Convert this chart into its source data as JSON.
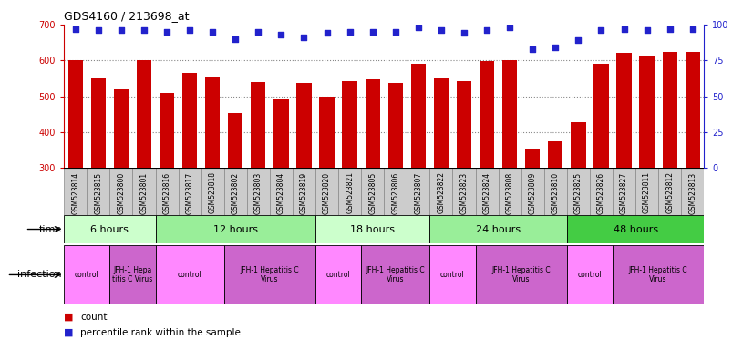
{
  "title": "GDS4160 / 213698_at",
  "samples": [
    "GSM523814",
    "GSM523815",
    "GSM523800",
    "GSM523801",
    "GSM523816",
    "GSM523817",
    "GSM523818",
    "GSM523802",
    "GSM523803",
    "GSM523804",
    "GSM523819",
    "GSM523820",
    "GSM523821",
    "GSM523805",
    "GSM523806",
    "GSM523807",
    "GSM523822",
    "GSM523823",
    "GSM523824",
    "GSM523808",
    "GSM523809",
    "GSM523810",
    "GSM523825",
    "GSM523826",
    "GSM523827",
    "GSM523811",
    "GSM523812",
    "GSM523813"
  ],
  "counts": [
    600,
    549,
    519,
    601,
    510,
    565,
    554,
    454,
    540,
    492,
    538,
    500,
    543,
    548,
    538,
    590,
    549,
    543,
    598,
    601,
    351,
    374,
    427,
    590,
    622,
    614,
    624,
    624
  ],
  "percentiles": [
    97,
    96,
    96,
    96,
    95,
    96,
    95,
    90,
    95,
    93,
    91,
    94,
    95,
    95,
    95,
    98,
    96,
    94,
    96,
    98,
    83,
    84,
    89,
    96,
    97,
    96,
    97,
    97
  ],
  "ylim_left": [
    300,
    700
  ],
  "ylim_right": [
    0,
    100
  ],
  "yticks_left": [
    300,
    400,
    500,
    600,
    700
  ],
  "yticks_right": [
    0,
    25,
    50,
    75,
    100
  ],
  "bar_color": "#cc0000",
  "dot_color": "#2222cc",
  "background_color": "#ffffff",
  "tick_color_left": "#cc0000",
  "tick_color_right": "#2222cc",
  "grid_color": "#888888",
  "bar_width": 0.65,
  "label_bg_color": "#cccccc",
  "label_border_color": "#888888",
  "time_groups": [
    {
      "label": "6 hours",
      "start": 0,
      "end": 4,
      "color": "#ccffcc"
    },
    {
      "label": "12 hours",
      "start": 4,
      "end": 11,
      "color": "#99ee99"
    },
    {
      "label": "18 hours",
      "start": 11,
      "end": 16,
      "color": "#ccffcc"
    },
    {
      "label": "24 hours",
      "start": 16,
      "end": 22,
      "color": "#99ee99"
    },
    {
      "label": "48 hours",
      "start": 22,
      "end": 28,
      "color": "#44cc44"
    }
  ],
  "infection_groups": [
    {
      "label": "control",
      "start": 0,
      "end": 2,
      "color": "#ff88ff"
    },
    {
      "label": "JFH-1 Hepa\ntitis C Virus",
      "start": 2,
      "end": 4,
      "color": "#cc66cc"
    },
    {
      "label": "control",
      "start": 4,
      "end": 7,
      "color": "#ff88ff"
    },
    {
      "label": "JFH-1 Hepatitis C\nVirus",
      "start": 7,
      "end": 11,
      "color": "#cc66cc"
    },
    {
      "label": "control",
      "start": 11,
      "end": 13,
      "color": "#ff88ff"
    },
    {
      "label": "JFH-1 Hepatitis C\nVirus",
      "start": 13,
      "end": 16,
      "color": "#cc66cc"
    },
    {
      "label": "control",
      "start": 16,
      "end": 18,
      "color": "#ff88ff"
    },
    {
      "label": "JFH-1 Hepatitis C\nVirus",
      "start": 18,
      "end": 22,
      "color": "#cc66cc"
    },
    {
      "label": "control",
      "start": 22,
      "end": 24,
      "color": "#ff88ff"
    },
    {
      "label": "JFH-1 Hepatitis C\nVirus",
      "start": 24,
      "end": 28,
      "color": "#cc66cc"
    }
  ],
  "legend_count_color": "#cc0000",
  "legend_pct_color": "#2222cc"
}
